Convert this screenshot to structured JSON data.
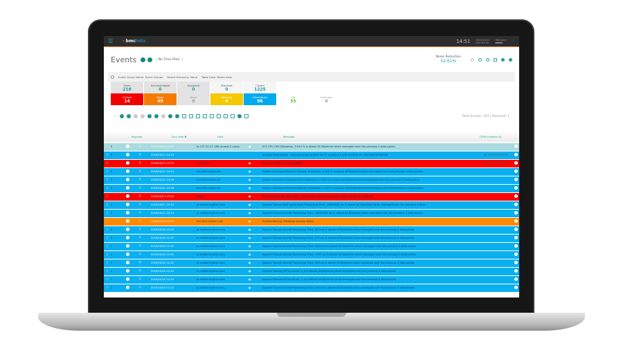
{
  "topbar": {
    "logo_brand": "bmc",
    "logo_product": "helix",
    "time": "14:51",
    "date": "2019/10/11",
    "timezone": "GMT-06:00",
    "welcome": "Welcome",
    "user": "admin"
  },
  "header": {
    "title": "Events",
    "time_filter": "No Time Filter",
    "noise_label": "Noise Reduction",
    "noise_value": "52.61%"
  },
  "filters": [
    {
      "label": "Event Group Name:",
      "value": "Event Groups"
    },
    {
      "label": "Parent Hierarchy:",
      "value": "None"
    },
    {
      "label": "Table View:",
      "value": "Demo View"
    }
  ],
  "status_cards": [
    {
      "label": "Open",
      "count": "218",
      "bg": "#e3e3e3"
    },
    {
      "label": "Acknowledged",
      "count": "0",
      "bg": "#e3e3e3"
    },
    {
      "label": "Assigned",
      "count": "0",
      "bg": "#e3e3e3"
    },
    {
      "label": "Blackout",
      "count": "0",
      "bg": "#f5f5f5"
    },
    {
      "label": "Closed",
      "count": "1225",
      "bg": "#f5f5f5"
    }
  ],
  "severity_cards": [
    {
      "label": "Critical",
      "count": "14",
      "bg": "#f20000",
      "fg": "#fff"
    },
    {
      "label": "Major",
      "count": "49",
      "bg": "#f47b00",
      "fg": "#fff"
    },
    {
      "label": "Minor",
      "count": "0",
      "bg": "#e3e3e3",
      "fg": "#999"
    },
    {
      "label": "Warning",
      "count": "4",
      "bg": "#f4c900",
      "fg": "#fff"
    },
    {
      "label": "Information",
      "count": "96",
      "bg": "#00aaef",
      "fg": "#fff"
    },
    {
      "label": "OK",
      "count": "55",
      "bg": "#fff",
      "fg": "#5cc23b"
    },
    {
      "label": "Unknown",
      "count": "0",
      "bg": "#fff",
      "fg": "#999"
    }
  ],
  "total_events": "Total Events: 163 | Selected: 1",
  "columns": {
    "repeats": "Repeats",
    "occurred": "Occurred ▼",
    "host": "Host",
    "message": "Message",
    "itsm": "ITSM Incident ID"
  },
  "colors": {
    "info": "#0aaff0",
    "critical": "#ff0000",
    "major": "#ff8a00",
    "selected": "#a9dadf"
  },
  "rows": [
    {
      "sev": "selected",
      "rep": "0",
      "occ": "2019/10/11 14:22",
      "host": "ip-172-31-27-186.us-east-2.comp",
      "msg": "EC2 CPU CPU Utilization, 0.910 % is above All Baselines when averaged over the previous 4 data points.",
      "itsm": ""
    },
    {
      "sev": "info",
      "rep": "0",
      "occ": "2019/10/11 14:15",
      "host": "",
      "msg": "Incident Information - Infrastructure Incident for CI cs-web-01 with Incident Id - INC000000006058",
      "itsm": "INC000000006058"
    },
    {
      "sev": "critical",
      "rep": "0",
      "occ": "2019/10/11 14:15",
      "host": "cs-web-01",
      "msg": "Server cs-web-01 is unavailable",
      "itsm": "INC000000006059"
    },
    {
      "sev": "info",
      "rep": "0",
      "occ": "2019/10/11 14:11",
      "host": "bdc-008.calbrs.net",
      "msg": "Docker Container Memory Memory Utilization, 0.160 % is above All Baselines when averaged over the previous 3 data points.",
      "itsm": ""
    },
    {
      "sev": "info",
      "rep": "0",
      "occ": "2019/10/11 13:39",
      "host": "bdc-008.calbrs.net",
      "msg": "Docker Container Processor CPU Utilization, 1.200 % is above All Baselines when averaged over the previous 3 data points.",
      "itsm": ""
    },
    {
      "sev": "info",
      "rep": "0",
      "occ": "2019/10/11 13:28",
      "host": "bdc-008.calbrs.net",
      "msg": "Docker Container Memory Memory Utilization, 0.180 % is above All Baselines when averaged over the previous 3 data points.",
      "itsm": ""
    },
    {
      "sev": "critical",
      "rep": "0",
      "occ": "2019/10/11 13:20",
      "host": "orders",
      "msg": "Retail Application application: Transaction with errors on the orders 80 server (critical)",
      "itsm": ""
    },
    {
      "sev": "info",
      "rep": "0",
      "occ": "2019/10/11 10:12",
      "host": "ar-midtier.trybmc.com",
      "msg": "Apache Tomcat Web Application Processing Time, 20881626 ms is above All Baselines when averaged over the previous 4 data...",
      "itsm": ""
    },
    {
      "sev": "info",
      "rep": "0",
      "occ": "2019/10/11 10:12",
      "host": "ar-midtier.trybmc.com",
      "msg": "Apache Tomcat Servlet Processing Time, 20833228 ms is above All Baselines when averaged over the previous 4 data points.",
      "itsm": ""
    },
    {
      "sev": "major",
      "rep": "",
      "occ": "2019/10/11 02:30",
      "host": "bdc-001.trybmc.com",
      "msg": "Self-Monitoring: Database backup failed.",
      "itsm": ""
    },
    {
      "sev": "info",
      "rep": "0",
      "occ": "2019/10/10 12:22",
      "host": "ar-midtier.trybmc.com",
      "msg": "Apache Tomcat Servlet Processing Time, 422 ms is above All Baselines when averaged over the previous 4 data points.",
      "itsm": ""
    },
    {
      "sev": "info",
      "rep": "0",
      "occ": "2019/10/10 12:22",
      "host": "ar-midtier.trybmc.com",
      "msg": "Apache Tomcat Servlet Processing Time, 172 ms is above All Baselines when averaged over the previous 4 data points.",
      "itsm": ""
    },
    {
      "sev": "info",
      "rep": "0",
      "occ": "2019/10/10 12:22",
      "host": "ar-midtier.trybmc.com",
      "msg": "Apache Tomcat Servlet Processing Time, 6845 ms is above All Baselines when averaged over the previous 4 data points.",
      "itsm": ""
    },
    {
      "sev": "info",
      "rep": "0",
      "occ": "2019/10/10 12:22",
      "host": "ar-midtier.trybmc.com",
      "msg": "Apache Tomcat Servlet Processing Time, 1797 ms is above All Baselines when averaged over the previous 4 data points.",
      "itsm": ""
    },
    {
      "sev": "info",
      "rep": "0",
      "occ": "2019/10/10 12:22",
      "host": "ar-midtier.trybmc.com",
      "msg": "Apache Tomcat Servlet Processing Time, 265 ms is above All Baselines when averaged over the previous 4 data points.",
      "itsm": ""
    },
    {
      "sev": "info",
      "rep": "0",
      "occ": "2019/10/10 12:22",
      "host": "ar-midtier.trybmc.com",
      "msg": "Apache Tomcat JSP Jsp Count, 1 # is above All Baselines when averaged over the previous 4 data points.",
      "itsm": ""
    },
    {
      "sev": "info",
      "rep": "0",
      "occ": "2019/10/10 12:22",
      "host": "ar-midtier.trybmc.com",
      "msg": "Apache Tomcat JSP Jsp Count, 1 # is above All Baselines when averaged over the previous 4 data points.",
      "itsm": ""
    },
    {
      "sev": "info",
      "rep": "0",
      "occ": "2019/10/10 12:22",
      "host": "ar-midtier.trybmc.com",
      "msg": "Apache Tomcat Servlet Processing Time, 643 ms is above All Baselines when averaged over the previous 4 data points.",
      "itsm": ""
    }
  ]
}
